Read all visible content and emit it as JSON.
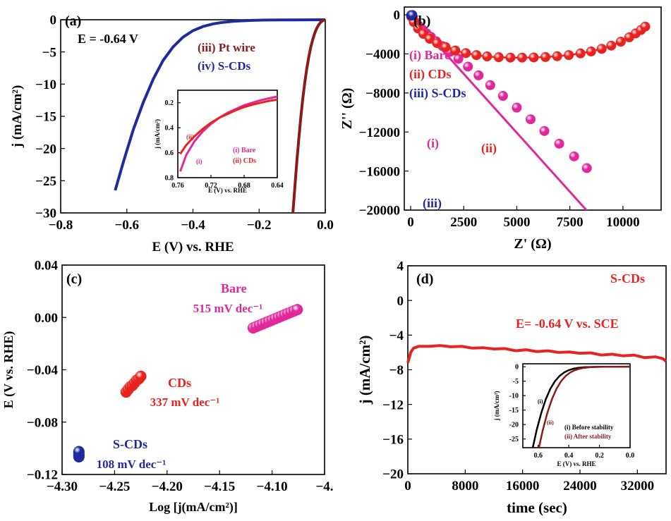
{
  "chart_data": [
    {
      "id": "a",
      "panel_label": "(a)",
      "type": "line",
      "xlabel": "E (V) vs. RHE",
      "ylabel": "j (mA/cm²)",
      "xlim": [
        -0.8,
        0.0
      ],
      "ylim": [
        -30,
        0
      ],
      "xticks": [
        -0.8,
        -0.6,
        -0.4,
        -0.2,
        0.0
      ],
      "xtick_labels": [
        "−0.8",
        "−0.6",
        "−0.4",
        "−0.2",
        "0.0"
      ],
      "yticks": [
        0,
        -5,
        -10,
        -15,
        -20,
        -25,
        -30
      ],
      "ytick_labels": [
        "0",
        "−5",
        "−10",
        "−15",
        "−20",
        "−25",
        "−30"
      ],
      "annotation": "E = -0.64 V",
      "legend": [
        {
          "label": "(iii) Pt wire",
          "color": "#8B1A1A"
        },
        {
          "label": "(iv) S-CDs",
          "color": "#1F2A9E"
        }
      ],
      "series": [
        {
          "color": "#1F2A9E",
          "x": [
            -0.635,
            -0.61,
            -0.58,
            -0.55,
            -0.52,
            -0.49,
            -0.46,
            -0.43,
            -0.4,
            -0.37,
            -0.34,
            -0.31,
            -0.28,
            -0.25,
            -0.22,
            -0.19,
            -0.16,
            -0.13,
            -0.1,
            -0.05,
            0.0
          ],
          "y": [
            -26.5,
            -22.0,
            -17.0,
            -12.8,
            -9.2,
            -6.3,
            -4.2,
            -2.7,
            -1.7,
            -1.05,
            -0.65,
            -0.4,
            -0.25,
            -0.16,
            -0.1,
            -0.06,
            -0.04,
            -0.03,
            -0.02,
            -0.01,
            0.0
          ]
        },
        {
          "color": "#8B1A1A",
          "x": [
            -0.098,
            -0.092,
            -0.086,
            -0.08,
            -0.074,
            -0.068,
            -0.062,
            -0.056,
            -0.05,
            -0.044,
            -0.038,
            -0.032,
            -0.026,
            -0.02,
            -0.014,
            -0.008,
            -0.004,
            0.0
          ],
          "y": [
            -30.0,
            -26.0,
            -22.0,
            -18.5,
            -15.2,
            -12.3,
            -9.8,
            -7.6,
            -5.8,
            -4.3,
            -3.1,
            -2.1,
            -1.35,
            -0.8,
            -0.4,
            -0.15,
            -0.05,
            0.0
          ]
        }
      ],
      "inset": {
        "xlabel": "E (V) vs. RHE",
        "ylabel": "j (mA/cm²)",
        "xlim": [
          0.76,
          0.64
        ],
        "ylim": [
          0.8,
          0.1
        ],
        "xticks": [
          0.76,
          0.72,
          0.68,
          0.64
        ],
        "xtick_labels": [
          "0.76",
          "0.72",
          "0.68",
          "0.64"
        ],
        "yticks": [
          0.2,
          0.4,
          0.6,
          0.8
        ],
        "ytick_labels": [
          "0.2",
          "0.4",
          "0.6",
          "0.8"
        ],
        "legend": [
          {
            "label": "(i) Bare",
            "color": "#E0289B"
          },
          {
            "label": "(ii) CDs",
            "color": "#E8231F"
          }
        ],
        "curve_labels": [
          "(i)",
          "(ii)"
        ],
        "series": [
          {
            "color": "#E0289B",
            "x": [
              0.757,
              0.75,
              0.74,
              0.73,
              0.72,
              0.71,
              0.7,
              0.69,
              0.68,
              0.67,
              0.66,
              0.65,
              0.64
            ],
            "y": [
              0.75,
              0.62,
              0.51,
              0.43,
              0.37,
              0.32,
              0.28,
              0.25,
              0.22,
              0.2,
              0.18,
              0.165,
              0.15
            ]
          },
          {
            "color": "#E8231F",
            "x": [
              0.757,
              0.75,
              0.74,
              0.73,
              0.72,
              0.71,
              0.7,
              0.69,
              0.68,
              0.67,
              0.66,
              0.65,
              0.64
            ],
            "y": [
              0.61,
              0.54,
              0.47,
              0.41,
              0.36,
              0.32,
              0.29,
              0.26,
              0.235,
              0.215,
              0.2,
              0.185,
              0.175
            ]
          }
        ]
      }
    },
    {
      "id": "b",
      "panel_label": "(b)",
      "type": "scatter",
      "xlabel": "Z' (Ω)",
      "ylabel": "Z'' (Ω)",
      "xlim": [
        -300,
        11800
      ],
      "ylim": [
        -20000,
        800
      ],
      "xticks": [
        0,
        2500,
        5000,
        7500,
        10000
      ],
      "xtick_labels": [
        "0",
        "2500",
        "5000",
        "7500",
        "10000"
      ],
      "yticks": [
        -20000,
        -16000,
        -12000,
        -8000,
        -4000,
        0
      ],
      "ytick_labels": [
        "−20000",
        "−16000",
        "−12000",
        "−8000",
        "−4000",
        "0"
      ],
      "legend": [
        {
          "label": "(i) Bare",
          "color": "#E0289B"
        },
        {
          "label": "(ii) CDs",
          "color": "#E8231F"
        },
        {
          "label": "(iii) S-CDs",
          "color": "#1F2A9E"
        }
      ],
      "curve_labels": [
        "(i)",
        "(ii)",
        "(iii)"
      ],
      "series": [
        {
          "color": "#E0289B",
          "x": [
            20,
            120,
            250,
            400,
            560,
            740,
            950,
            1200,
            1500,
            1850,
            2250,
            2700,
            3200,
            3750,
            4350,
            5000,
            5650,
            6300,
            7000,
            7700,
            8300
          ],
          "y": [
            -150,
            -450,
            -800,
            -1150,
            -1500,
            -1870,
            -2250,
            -2700,
            -3200,
            -3800,
            -4500,
            -5300,
            -6200,
            -7200,
            -8300,
            -9500,
            -10700,
            -11900,
            -13200,
            -14500,
            -15700
          ]
        },
        {
          "color": "#E8231F",
          "x": [
            20,
            150,
            350,
            600,
            900,
            1250,
            1650,
            2100,
            2600,
            3100,
            3600,
            4150,
            4700,
            5250,
            5800,
            6350,
            6900,
            7450,
            8000,
            8500,
            9000,
            9450,
            9900,
            10300,
            10600,
            10850,
            11050
          ],
          "y": [
            -150,
            -750,
            -1400,
            -1950,
            -2450,
            -2900,
            -3300,
            -3650,
            -3920,
            -4120,
            -4260,
            -4340,
            -4380,
            -4380,
            -4360,
            -4320,
            -4240,
            -4120,
            -3950,
            -3750,
            -3480,
            -3150,
            -2750,
            -2300,
            -1900,
            -1550,
            -1200
          ]
        },
        {
          "color": "#1F2A9E",
          "x": [
            20,
            40,
            60,
            80
          ],
          "y": [
            -40,
            -80,
            -60,
            -20
          ]
        }
      ]
    },
    {
      "id": "c",
      "panel_label": "(c)",
      "type": "scatter",
      "xlabel": "Log [j(mA/cm²)]",
      "ylabel": "E (V vs. RHE)",
      "xlim": [
        -4.3,
        -4.05
      ],
      "ylim": [
        -0.12,
        0.04
      ],
      "xticks": [
        -4.3,
        -4.25,
        -4.2,
        -4.15,
        -4.1,
        -4.05
      ],
      "xtick_labels": [
        "−4.30",
        "−4.25",
        "−4.20",
        "−4.15",
        "−4.10",
        "−4."
      ],
      "yticks": [
        0.04,
        0.0,
        -0.04,
        -0.08,
        -0.12
      ],
      "ytick_labels": [
        "0.04",
        "0.00",
        "−0.04",
        "−0.08",
        "−0.12"
      ],
      "annotations": [
        {
          "name": "Bare",
          "slope": "515 mV dec⁻¹",
          "color": "#E0289B"
        },
        {
          "name": "CDs",
          "slope": "337 mV dec⁻¹",
          "color": "#E8231F"
        },
        {
          "name": "S-CDs",
          "slope": "108 mV dec⁻¹",
          "color": "#1F2A9E"
        }
      ],
      "series": [
        {
          "color": "#E0289B",
          "x": [
            -4.118,
            -4.115,
            -4.112,
            -4.109,
            -4.106,
            -4.103,
            -4.1,
            -4.097,
            -4.094,
            -4.091,
            -4.088,
            -4.085,
            -4.082,
            -4.079,
            -4.076
          ],
          "y": [
            -0.008,
            -0.007,
            -0.006,
            -0.005,
            -0.004,
            -0.003,
            -0.002,
            -0.001,
            0.0,
            0.001,
            0.002,
            0.003,
            0.004,
            0.005,
            0.006
          ]
        },
        {
          "color": "#E8231F",
          "x": [
            -4.239,
            -4.237,
            -4.235,
            -4.233,
            -4.231,
            -4.229,
            -4.227,
            -4.225
          ],
          "y": [
            -0.057,
            -0.055,
            -0.053,
            -0.052,
            -0.05,
            -0.048,
            -0.047,
            -0.045
          ]
        },
        {
          "color": "#1F2A9E",
          "x": [
            -4.284,
            -4.284,
            -4.284,
            -4.284,
            -4.284
          ],
          "y": [
            -0.1065,
            -0.1055,
            -0.1045,
            -0.1035,
            -0.1025
          ]
        }
      ]
    },
    {
      "id": "d",
      "panel_label": "(d)",
      "type": "line",
      "xlabel": "time (sec)",
      "ylabel": "j (mA/cm²)",
      "xlim": [
        0,
        36000
      ],
      "ylim": [
        -20,
        4
      ],
      "xticks": [
        0,
        8000,
        16000,
        24000,
        32000
      ],
      "xtick_labels": [
        "0",
        "8000",
        "16000",
        "24000",
        "32000"
      ],
      "yticks": [
        4,
        0,
        -4,
        -8,
        -12,
        -16,
        -20
      ],
      "ytick_labels": [
        "4",
        "0",
        "−4",
        "−8",
        "−12",
        "−16",
        "−20"
      ],
      "legend_title": "S-CDs",
      "annotation": "E= -0.64 V vs. SCE",
      "series": [
        {
          "color": "#E8231F",
          "x": [
            0,
            400,
            800,
            1500,
            3000,
            4500,
            6000,
            7500,
            9000,
            10500,
            12000,
            13500,
            15000,
            16500,
            18000,
            19500,
            21000,
            22500,
            24000,
            25500,
            27000,
            28500,
            30000,
            31500,
            33000,
            34500,
            35500,
            36000
          ],
          "y": [
            -7.2,
            -6.0,
            -5.5,
            -5.3,
            -5.3,
            -5.2,
            -5.35,
            -5.3,
            -5.5,
            -5.45,
            -5.6,
            -5.55,
            -5.8,
            -5.7,
            -5.9,
            -5.8,
            -6.0,
            -5.95,
            -6.1,
            -6.05,
            -6.3,
            -6.2,
            -6.4,
            -6.3,
            -6.6,
            -6.5,
            -6.7,
            -7.0
          ]
        }
      ],
      "inset": {
        "xlabel": "E (V) vs. RHE",
        "ylabel": "j (mA/cm²)",
        "xlim": [
          0.7,
          0.0
        ],
        "ylim": [
          -28,
          1
        ],
        "xticks": [
          0.6,
          0.4,
          0.2,
          0.0
        ],
        "xtick_labels": [
          "0.6",
          "0.4",
          "0.2",
          "0.0"
        ],
        "yticks": [
          0,
          -5,
          -10,
          -15,
          -20,
          -25
        ],
        "ytick_labels": [
          "0",
          "-5",
          "-10",
          "-15",
          "-20",
          "-25"
        ],
        "legend": [
          {
            "label": "(i) Before stability",
            "color": "#000000"
          },
          {
            "label": "(ii) After stability",
            "color": "#8B1A1A"
          }
        ],
        "curve_labels": [
          "(i)",
          "(ii)"
        ],
        "series": [
          {
            "color": "#000000",
            "x": [
              0.635,
              0.61,
              0.58,
              0.55,
              0.52,
              0.49,
              0.46,
              0.43,
              0.4,
              0.37,
              0.34,
              0.3,
              0.25,
              0.2,
              0.1,
              0.0
            ],
            "y": [
              -28,
              -22,
              -16,
              -11.2,
              -7.6,
              -5.0,
              -3.2,
              -2.0,
              -1.2,
              -0.7,
              -0.4,
              -0.2,
              -0.1,
              -0.05,
              -0.02,
              0.0
            ]
          },
          {
            "color": "#8B1A1A",
            "x": [
              0.595,
              0.57,
              0.54,
              0.51,
              0.48,
              0.45,
              0.42,
              0.39,
              0.36,
              0.33,
              0.3,
              0.26,
              0.22,
              0.17,
              0.1,
              0.0
            ],
            "y": [
              -28,
              -22,
              -16,
              -11.2,
              -7.6,
              -5.0,
              -3.2,
              -2.0,
              -1.2,
              -0.7,
              -0.4,
              -0.2,
              -0.1,
              -0.05,
              -0.02,
              0.0
            ]
          }
        ]
      }
    }
  ]
}
